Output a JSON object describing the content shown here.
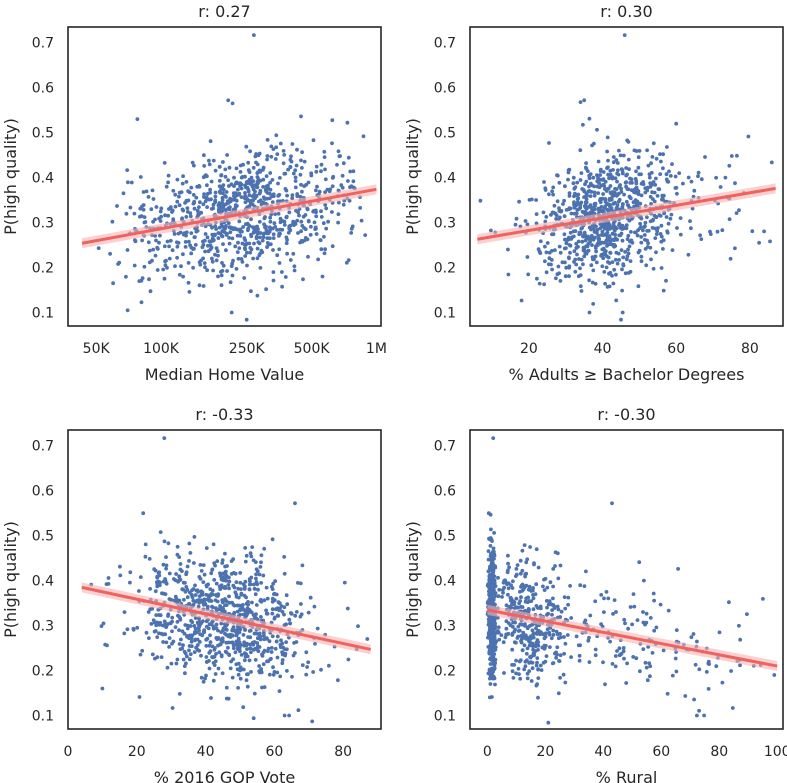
{
  "colors": {
    "points": "#4c72b0",
    "fit": "#f0625d",
    "band": "#f7b3b0",
    "frame": "#262626",
    "text": "#262626"
  },
  "chart_data": [
    {
      "type": "scatter",
      "title": "r: 0.27",
      "xlabel": "Median Home Value",
      "ylabel": "P(high quality)",
      "xscale": "log",
      "xlim": [
        37000,
        1050000
      ],
      "ylim": [
        0.07,
        0.735
      ],
      "xticks": [
        50000,
        100000,
        250000,
        500000,
        1000000
      ],
      "xtick_labels": [
        "50K",
        "100K",
        "250K",
        "500K",
        "1M"
      ],
      "yticks": [
        0.1,
        0.2,
        0.3,
        0.4,
        0.5,
        0.6,
        0.7
      ],
      "ytick_labels": [
        "0.1",
        "0.2",
        "0.3",
        "0.4",
        "0.5",
        "0.6",
        "0.7"
      ],
      "grid": false,
      "fit_line": {
        "x": [
          43000,
          1000000
        ],
        "y": [
          0.254,
          0.374
        ]
      },
      "points": {
        "n": 900,
        "y_mean": 0.315,
        "y_sd": 0.068,
        "y_range": [
          0.1,
          0.55
        ],
        "x_weighted_ranges": [
          [
            60000,
            950000,
            0.8
          ],
          [
            43000,
            1000000,
            0.2
          ]
        ],
        "noise": "gaussian_around_fit"
      },
      "outliers": [
        [
          270000,
          0.717
        ],
        [
          205000,
          0.572
        ],
        [
          215000,
          0.565
        ],
        [
          250000,
          0.084
        ],
        [
          70000,
          0.105
        ]
      ]
    },
    {
      "type": "scatter",
      "title": "r: 0.30",
      "xlabel": "% Adults ≥ Bachelor Degrees",
      "ylabel": "P(high quality)",
      "xscale": "linear",
      "xlim": [
        4,
        89
      ],
      "ylim": [
        0.07,
        0.735
      ],
      "xticks": [
        20,
        40,
        60,
        80
      ],
      "xtick_labels": [
        "20",
        "40",
        "60",
        "80"
      ],
      "yticks": [
        0.1,
        0.2,
        0.3,
        0.4,
        0.5,
        0.6,
        0.7
      ],
      "ytick_labels": [
        "0.1",
        "0.2",
        "0.3",
        "0.4",
        "0.5",
        "0.6",
        "0.7"
      ],
      "grid": false,
      "fit_line": {
        "x": [
          6,
          87
        ],
        "y": [
          0.263,
          0.376
        ]
      },
      "points": {
        "n": 900,
        "y_mean": 0.315,
        "y_sd": 0.068,
        "y_range": [
          0.1,
          0.55
        ],
        "x_weighted_ranges": [
          [
            20,
            60,
            0.75
          ],
          [
            6,
            87,
            0.25
          ]
        ],
        "noise": "gaussian_around_fit"
      },
      "outliers": [
        [
          46,
          0.717
        ],
        [
          35,
          0.572
        ],
        [
          34,
          0.568
        ],
        [
          45,
          0.084
        ],
        [
          60,
          0.52
        ]
      ]
    },
    {
      "type": "scatter",
      "title": "r: -0.33",
      "xlabel": "% 2016 GOP Vote",
      "ylabel": "P(high quality)",
      "xscale": "linear",
      "xlim": [
        0,
        91
      ],
      "ylim": [
        0.07,
        0.735
      ],
      "xticks": [
        0,
        20,
        40,
        60,
        80
      ],
      "xtick_labels": [
        "0",
        "20",
        "40",
        "60",
        "80"
      ],
      "yticks": [
        0.1,
        0.2,
        0.3,
        0.4,
        0.5,
        0.6,
        0.7
      ],
      "ytick_labels": [
        "0.1",
        "0.2",
        "0.3",
        "0.4",
        "0.5",
        "0.6",
        "0.7"
      ],
      "grid": false,
      "fit_line": {
        "x": [
          4,
          88
        ],
        "y": [
          0.385,
          0.247
        ]
      },
      "points": {
        "n": 900,
        "y_mean": 0.315,
        "y_sd": 0.068,
        "y_range": [
          0.1,
          0.55
        ],
        "x_weighted_ranges": [
          [
            20,
            70,
            0.75
          ],
          [
            4,
            88,
            0.25
          ]
        ],
        "noise": "gaussian_around_fit"
      },
      "outliers": [
        [
          28,
          0.717
        ],
        [
          66,
          0.572
        ],
        [
          71,
          0.087
        ],
        [
          54,
          0.094
        ],
        [
          10,
          0.16
        ]
      ]
    },
    {
      "type": "scatter",
      "title": "r: -0.30",
      "xlabel": "% Rural",
      "ylabel": "P(high quality)",
      "xscale": "linear",
      "xlim": [
        -6,
        102
      ],
      "ylim": [
        0.07,
        0.735
      ],
      "xticks": [
        0,
        20,
        40,
        60,
        80,
        100
      ],
      "xtick_labels": [
        "0",
        "20",
        "40",
        "60",
        "80",
        "100"
      ],
      "yticks": [
        0.1,
        0.2,
        0.3,
        0.4,
        0.5,
        0.6,
        0.7
      ],
      "ytick_labels": [
        "0.1",
        "0.2",
        "0.3",
        "0.4",
        "0.5",
        "0.6",
        "0.7"
      ],
      "grid": false,
      "fit_line": {
        "x": [
          0,
          100
        ],
        "y": [
          0.335,
          0.21
        ]
      },
      "points": {
        "n": 950,
        "y_mean": 0.315,
        "y_sd": 0.068,
        "y_range": [
          0.1,
          0.55
        ],
        "x_weighted_ranges": [
          [
            0,
            3,
            0.45
          ],
          [
            0,
            30,
            0.35
          ],
          [
            0,
            100,
            0.2
          ]
        ],
        "noise": "gaussian_around_fit"
      },
      "outliers": [
        [
          2,
          0.717
        ],
        [
          43,
          0.572
        ],
        [
          21,
          0.084
        ],
        [
          99,
          0.19
        ]
      ]
    }
  ]
}
